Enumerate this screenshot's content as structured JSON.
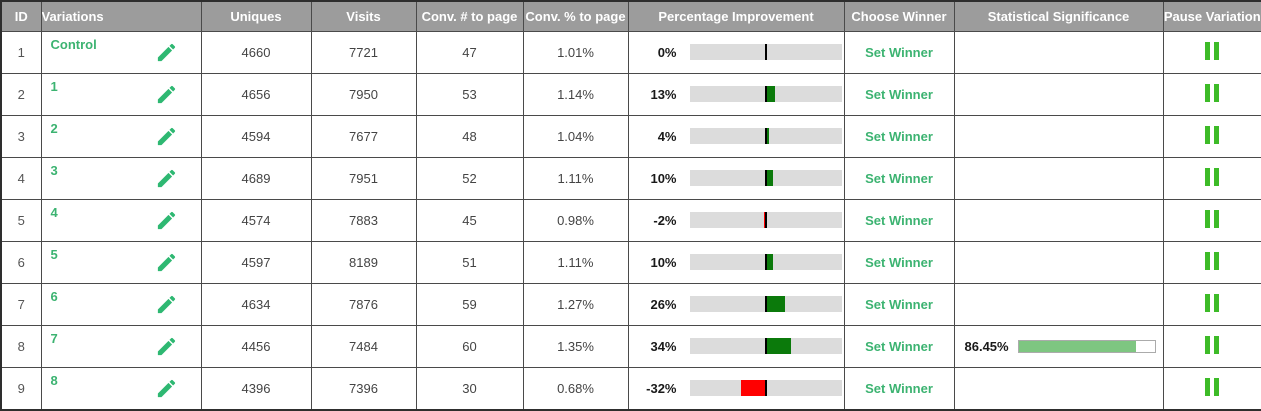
{
  "colors": {
    "header_bg": "#9C9C9C",
    "accent_green": "#3CB371",
    "pencil_green": "#2EB872",
    "pause_green": "#3DBB28",
    "bar_green": "#0B7A0B",
    "bar_red": "#FF0000",
    "sig_green": "#7EC681"
  },
  "icons": {
    "edit": "pencil-icon",
    "pause": "pause-icon"
  },
  "table": {
    "columns": [
      {
        "label": "ID"
      },
      {
        "label": "Variations"
      },
      {
        "label": "Uniques"
      },
      {
        "label": "Visits"
      },
      {
        "label": "Conv. # to page"
      },
      {
        "label": "Conv. % to page"
      },
      {
        "label": "Percentage Improvement"
      },
      {
        "label": "Choose Winner"
      },
      {
        "label": "Statistical Significance"
      },
      {
        "label": "Pause Variation"
      }
    ],
    "set_winner_label": "Set Winner",
    "improvement_scale_max": 100,
    "rows": [
      {
        "id": "1",
        "variation": "Control",
        "uniques": "4660",
        "visits": "7721",
        "conv_num": "47",
        "conv_pct": "1.01%",
        "improvement_label": "0%",
        "improvement_value": 0,
        "significance_label": "",
        "significance_value": null
      },
      {
        "id": "2",
        "variation": "1",
        "uniques": "4656",
        "visits": "7950",
        "conv_num": "53",
        "conv_pct": "1.14%",
        "improvement_label": "13%",
        "improvement_value": 13,
        "significance_label": "",
        "significance_value": null
      },
      {
        "id": "3",
        "variation": "2",
        "uniques": "4594",
        "visits": "7677",
        "conv_num": "48",
        "conv_pct": "1.04%",
        "improvement_label": "4%",
        "improvement_value": 4,
        "significance_label": "",
        "significance_value": null
      },
      {
        "id": "4",
        "variation": "3",
        "uniques": "4689",
        "visits": "7951",
        "conv_num": "52",
        "conv_pct": "1.11%",
        "improvement_label": "10%",
        "improvement_value": 10,
        "significance_label": "",
        "significance_value": null
      },
      {
        "id": "5",
        "variation": "4",
        "uniques": "4574",
        "visits": "7883",
        "conv_num": "45",
        "conv_pct": "0.98%",
        "improvement_label": "-2%",
        "improvement_value": -2,
        "significance_label": "",
        "significance_value": null
      },
      {
        "id": "6",
        "variation": "5",
        "uniques": "4597",
        "visits": "8189",
        "conv_num": "51",
        "conv_pct": "1.11%",
        "improvement_label": "10%",
        "improvement_value": 10,
        "significance_label": "",
        "significance_value": null
      },
      {
        "id": "7",
        "variation": "6",
        "uniques": "4634",
        "visits": "7876",
        "conv_num": "59",
        "conv_pct": "1.27%",
        "improvement_label": "26%",
        "improvement_value": 26,
        "significance_label": "",
        "significance_value": null
      },
      {
        "id": "8",
        "variation": "7",
        "uniques": "4456",
        "visits": "7484",
        "conv_num": "60",
        "conv_pct": "1.35%",
        "improvement_label": "34%",
        "improvement_value": 34,
        "significance_label": "86.45%",
        "significance_value": 86.45
      },
      {
        "id": "9",
        "variation": "8",
        "uniques": "4396",
        "visits": "7396",
        "conv_num": "30",
        "conv_pct": "0.68%",
        "improvement_label": "-32%",
        "improvement_value": -32,
        "significance_label": "",
        "significance_value": null
      }
    ]
  }
}
